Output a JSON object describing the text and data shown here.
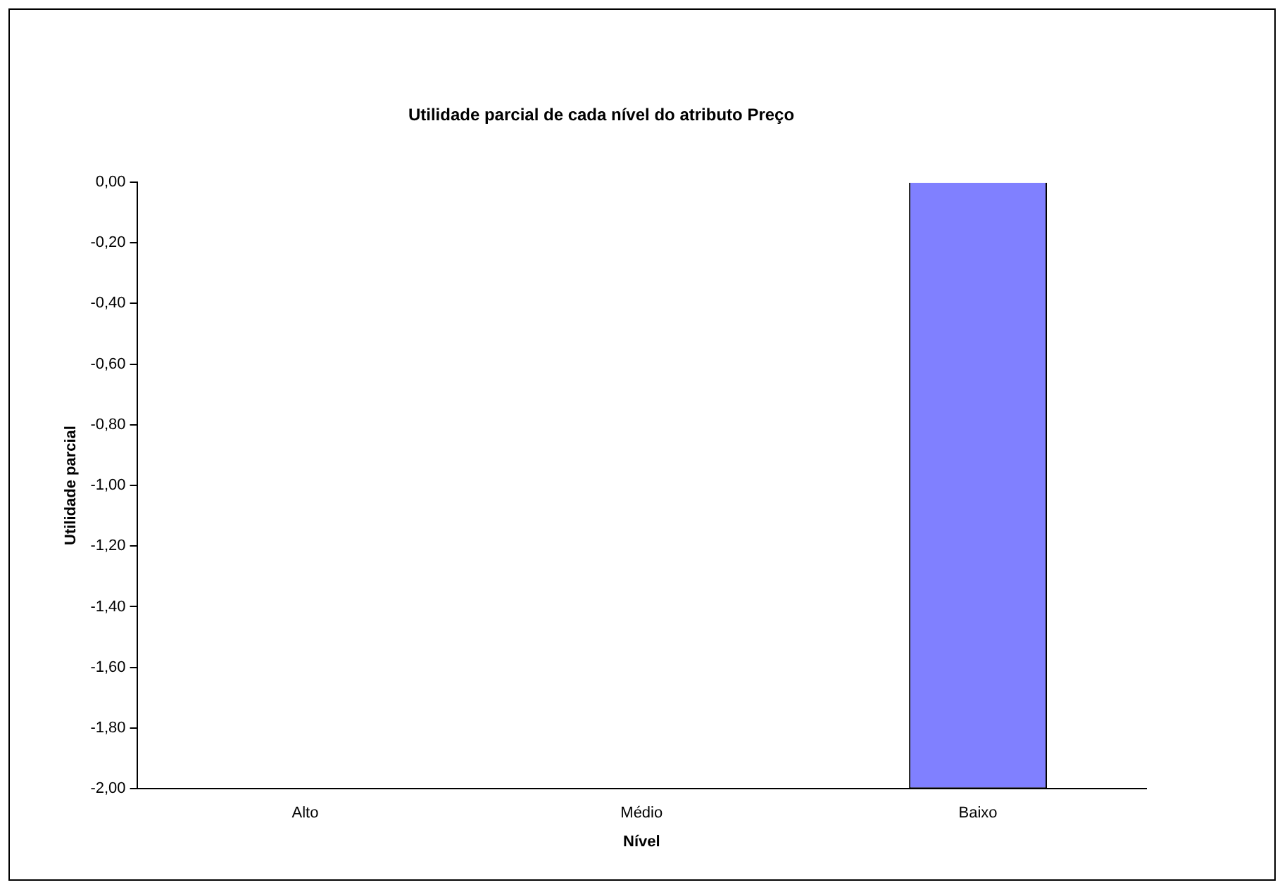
{
  "chart_data": {
    "type": "bar",
    "title": "Utilidade parcial de cada nível do atributo Preço",
    "xlabel": "Nível",
    "ylabel": "Utilidade parcial",
    "categories": [
      "Alto",
      "Médio",
      "Baixo"
    ],
    "values": [
      0,
      0,
      -2.0
    ],
    "colors": [
      "#6666cc",
      "#6666cc",
      "#8080ff"
    ],
    "ylim": [
      -2,
      0
    ],
    "yticks": [
      {
        "value": 0,
        "label": "0,00"
      },
      {
        "value": -0.2,
        "label": "-0,20"
      },
      {
        "value": -0.4,
        "label": "-0,40"
      },
      {
        "value": -0.6,
        "label": "-0,60"
      },
      {
        "value": -0.8,
        "label": "-0,80"
      },
      {
        "value": -1,
        "label": "-1,00"
      },
      {
        "value": -1.2,
        "label": "-1,20"
      },
      {
        "value": -1.4,
        "label": "-1,40"
      },
      {
        "value": -1.6,
        "label": "-1,60"
      },
      {
        "value": -1.8,
        "label": "-1,80"
      },
      {
        "value": -2,
        "label": "-2,00"
      }
    ],
    "grid": false,
    "legend": false
  }
}
